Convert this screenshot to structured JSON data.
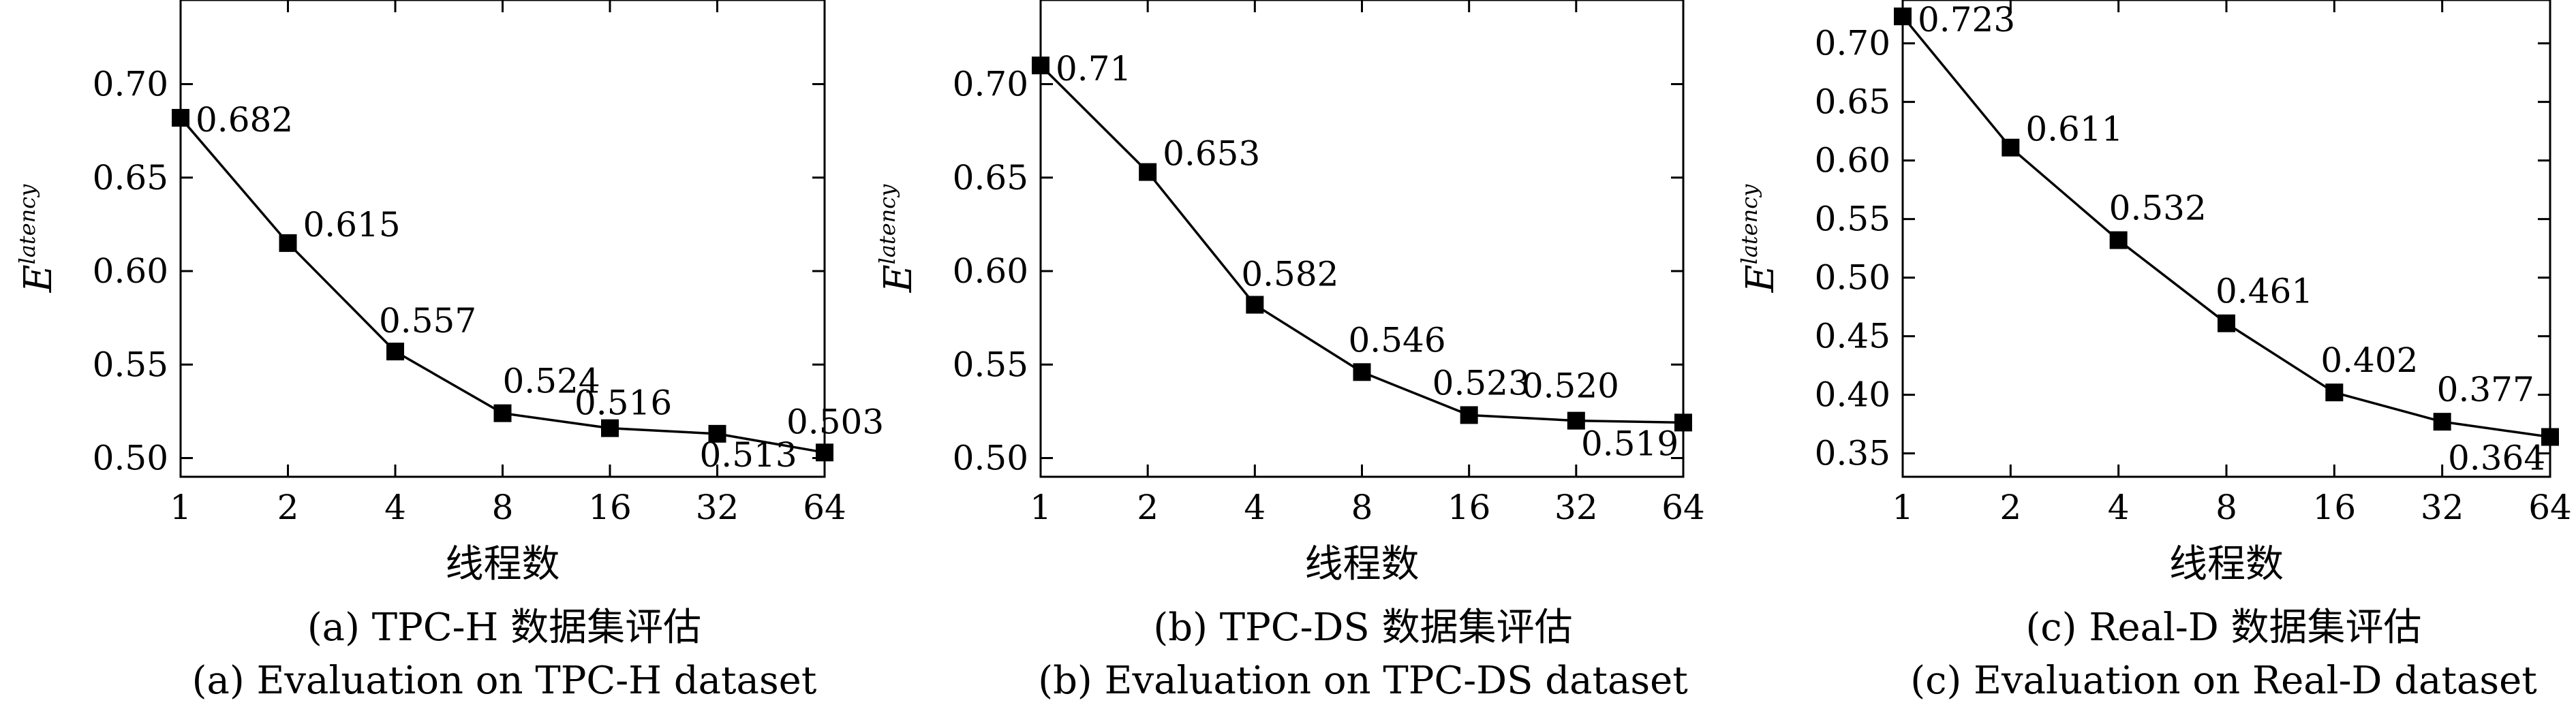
{
  "chart_data": [
    {
      "type": "line",
      "x": [
        1,
        2,
        4,
        8,
        16,
        32,
        64
      ],
      "x_scale": "log2",
      "values": [
        0.682,
        0.615,
        0.557,
        0.524,
        0.516,
        0.513,
        0.503
      ],
      "data_labels": [
        "0.682",
        "0.615",
        "0.557",
        "0.524",
        "0.516",
        "0.513",
        "0.503"
      ],
      "xlabel": "线程数",
      "ylabel_main": "E",
      "ylabel_sup": "latency",
      "xticks": [
        "1",
        "2",
        "4",
        "8",
        "16",
        "32",
        "64"
      ],
      "yticks": [
        "0.50",
        "0.55",
        "0.60",
        "0.65",
        "0.70"
      ],
      "ylim": [
        0.49,
        0.745
      ],
      "marker": "square",
      "line_color": "#000000",
      "caption_cn": "(a) TPC-H 数据集评估",
      "caption_en": "(a) Evaluation on TPC-H dataset"
    },
    {
      "type": "line",
      "x": [
        1,
        2,
        4,
        8,
        16,
        32,
        64
      ],
      "x_scale": "log2",
      "values": [
        0.71,
        0.653,
        0.582,
        0.546,
        0.523,
        0.52,
        0.519
      ],
      "data_labels": [
        "0.71",
        "0.653",
        "0.582",
        "0.546",
        "0.523",
        "0.520",
        "0.519"
      ],
      "xlabel": "线程数",
      "ylabel_main": "E",
      "ylabel_sup": "latency",
      "xticks": [
        "1",
        "2",
        "4",
        "8",
        "16",
        "32",
        "64"
      ],
      "yticks": [
        "0.50",
        "0.55",
        "0.60",
        "0.65",
        "0.70"
      ],
      "ylim": [
        0.49,
        0.745
      ],
      "marker": "square",
      "line_color": "#000000",
      "caption_cn": "(b) TPC-DS 数据集评估",
      "caption_en": "(b) Evaluation on TPC-DS dataset"
    },
    {
      "type": "line",
      "x": [
        1,
        2,
        4,
        8,
        16,
        32,
        64
      ],
      "x_scale": "log2",
      "values": [
        0.723,
        0.611,
        0.532,
        0.461,
        0.402,
        0.377,
        0.364
      ],
      "data_labels": [
        "0.723",
        "0.611",
        "0.532",
        "0.461",
        "0.402",
        "0.377",
        "0.364"
      ],
      "xlabel": "线程数",
      "ylabel_main": "E",
      "ylabel_sup": "latency",
      "xticks": [
        "1",
        "2",
        "4",
        "8",
        "16",
        "32",
        "64"
      ],
      "yticks": [
        "0.35",
        "0.40",
        "0.45",
        "0.50",
        "0.55",
        "0.60",
        "0.65",
        "0.70"
      ],
      "ylim": [
        0.33,
        0.737
      ],
      "marker": "square",
      "line_color": "#000000",
      "caption_cn": "(c) Real-D 数据集评估",
      "caption_en": "(c) Evaluation on Real-D dataset"
    }
  ]
}
